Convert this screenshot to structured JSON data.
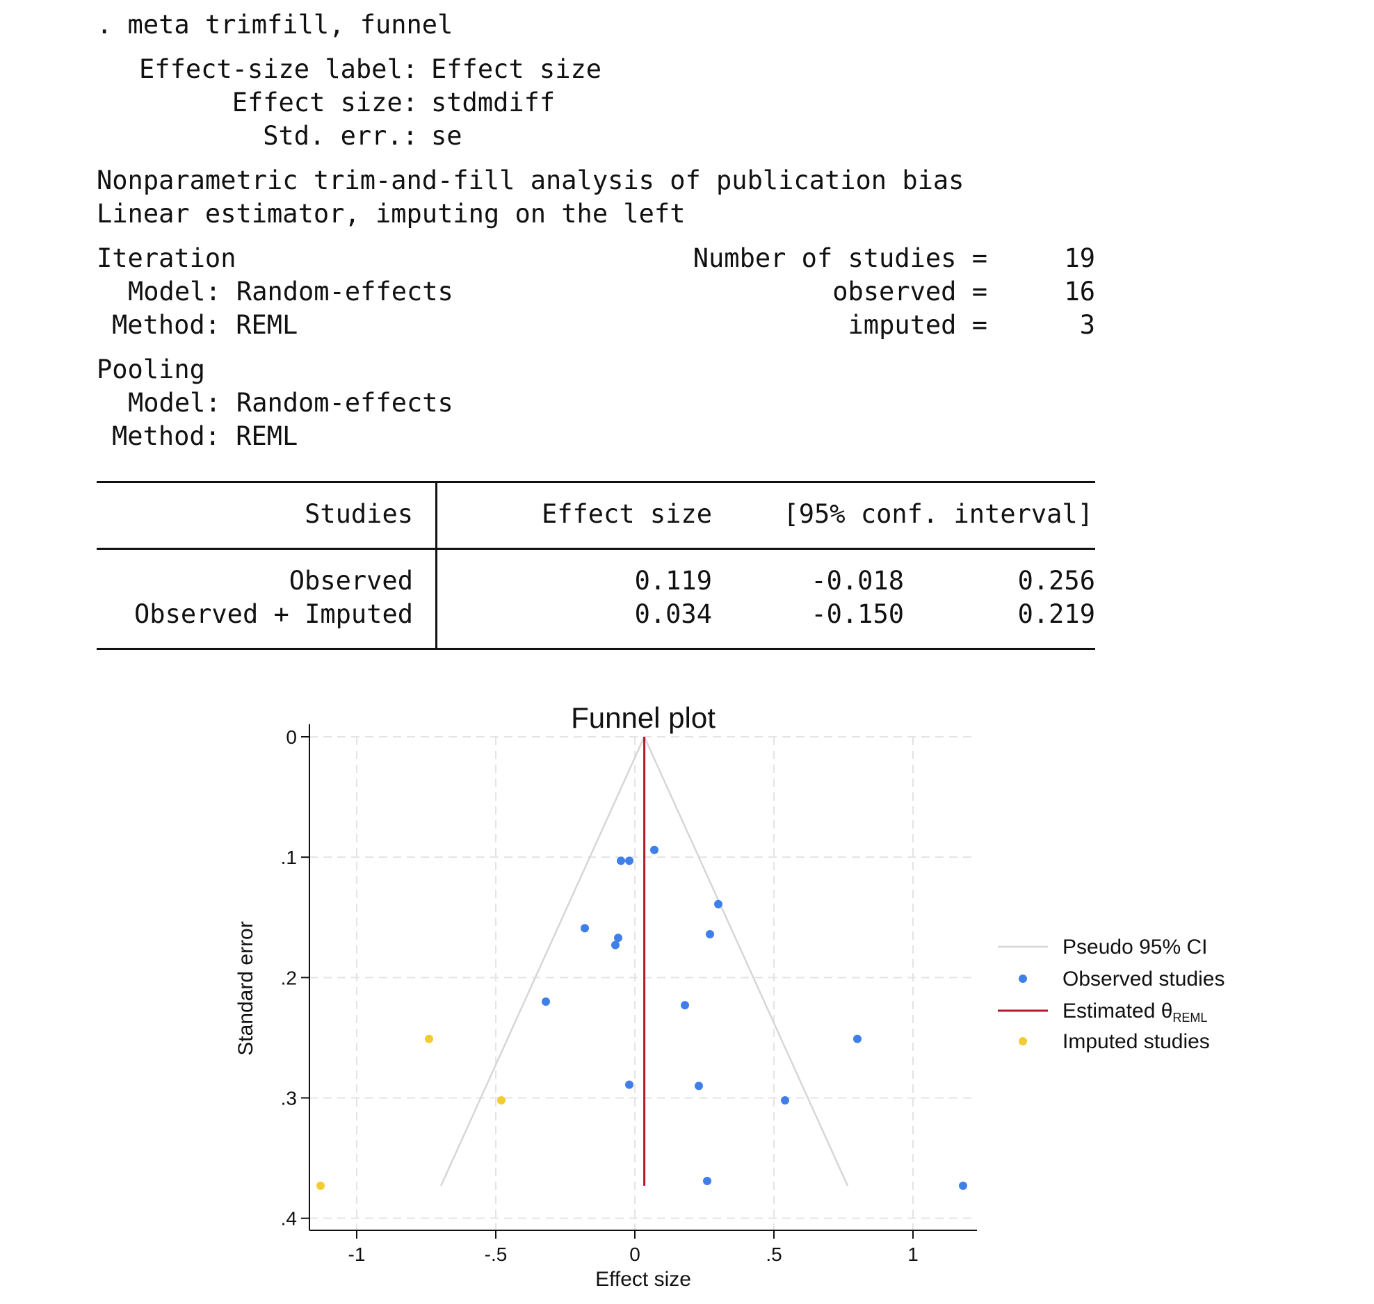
{
  "console": {
    "command": ". meta trimfill, funnel",
    "label_rows": [
      {
        "key": "Effect-size label:",
        "value": "Effect size"
      },
      {
        "key": "Effect size:",
        "value": "stdmdiff"
      },
      {
        "key": "Std. err.:",
        "value": "se"
      }
    ],
    "heading1": "Nonparametric trim-and-fill analysis of publication bias",
    "heading2": "Linear estimator, imputing on the left",
    "iteration_label": "Iteration",
    "iteration_model": "Model: Random-effects",
    "iteration_method": "Method: REML",
    "counts": [
      {
        "label": "Number of studies =",
        "value": "19"
      },
      {
        "label": "observed =",
        "value": "16"
      },
      {
        "label": "imputed =",
        "value": "3"
      }
    ],
    "pooling_label": "Pooling",
    "pooling_model": "Model: Random-effects",
    "pooling_method": "Method: REML"
  },
  "table": {
    "header": {
      "studies": "Studies",
      "effect": "Effect size",
      "ci": "[95% conf. interval]"
    },
    "rows": [
      {
        "studies": "Observed",
        "effect": "0.119",
        "lo": "-0.018",
        "hi": "0.256"
      },
      {
        "studies": "Observed + Imputed",
        "effect": "0.034",
        "lo": "-0.150",
        "hi": "0.219"
      }
    ]
  },
  "chart_data": {
    "type": "scatter",
    "title": "Funnel plot",
    "xlabel": "Effect size",
    "ylabel": "Standard error",
    "xlim": [
      -1.17,
      1.23
    ],
    "ylim": [
      0,
      0.41
    ],
    "y_reversed": true,
    "xticks": [
      -1,
      -0.5,
      0,
      0.5,
      1
    ],
    "xtick_labels": [
      "-1",
      "-.5",
      "0",
      ".5",
      "1"
    ],
    "yticks": [
      0,
      0.1,
      0.2,
      0.3,
      0.4
    ],
    "ytick_labels": [
      "0",
      ".1",
      ".2",
      ".3",
      ".4"
    ],
    "grid": true,
    "legend_position": "right",
    "estimate": 0.034,
    "ci_se_max": 0.373,
    "legend": [
      {
        "key": "ci",
        "label": "Pseudo 95% CI"
      },
      {
        "key": "observed",
        "label": "Observed studies"
      },
      {
        "key": "estimate",
        "label": "Estimated θ",
        "subscript": "REML"
      },
      {
        "key": "imputed",
        "label": "Imputed studies"
      }
    ],
    "colors": {
      "observed": "#3f7fe8",
      "imputed": "#f2cc30",
      "estimate": "#b0192b",
      "ci": "#d6d6d6",
      "grid": "#e4e4e4"
    },
    "series": [
      {
        "name": "Observed studies",
        "points": [
          {
            "x": 0.07,
            "y": 0.094
          },
          {
            "x": -0.05,
            "y": 0.103
          },
          {
            "x": -0.02,
            "y": 0.103
          },
          {
            "x": 0.3,
            "y": 0.139
          },
          {
            "x": -0.18,
            "y": 0.159
          },
          {
            "x": -0.06,
            "y": 0.167
          },
          {
            "x": -0.07,
            "y": 0.173
          },
          {
            "x": 0.27,
            "y": 0.164
          },
          {
            "x": -0.32,
            "y": 0.22
          },
          {
            "x": 0.18,
            "y": 0.223
          },
          {
            "x": 0.8,
            "y": 0.251
          },
          {
            "x": -0.02,
            "y": 0.289
          },
          {
            "x": 0.23,
            "y": 0.29
          },
          {
            "x": 0.54,
            "y": 0.302
          },
          {
            "x": 0.26,
            "y": 0.369
          },
          {
            "x": 1.18,
            "y": 0.373
          }
        ]
      },
      {
        "name": "Imputed studies",
        "points": [
          {
            "x": -0.74,
            "y": 0.251
          },
          {
            "x": -0.48,
            "y": 0.302
          },
          {
            "x": -1.13,
            "y": 0.373
          }
        ]
      }
    ]
  }
}
